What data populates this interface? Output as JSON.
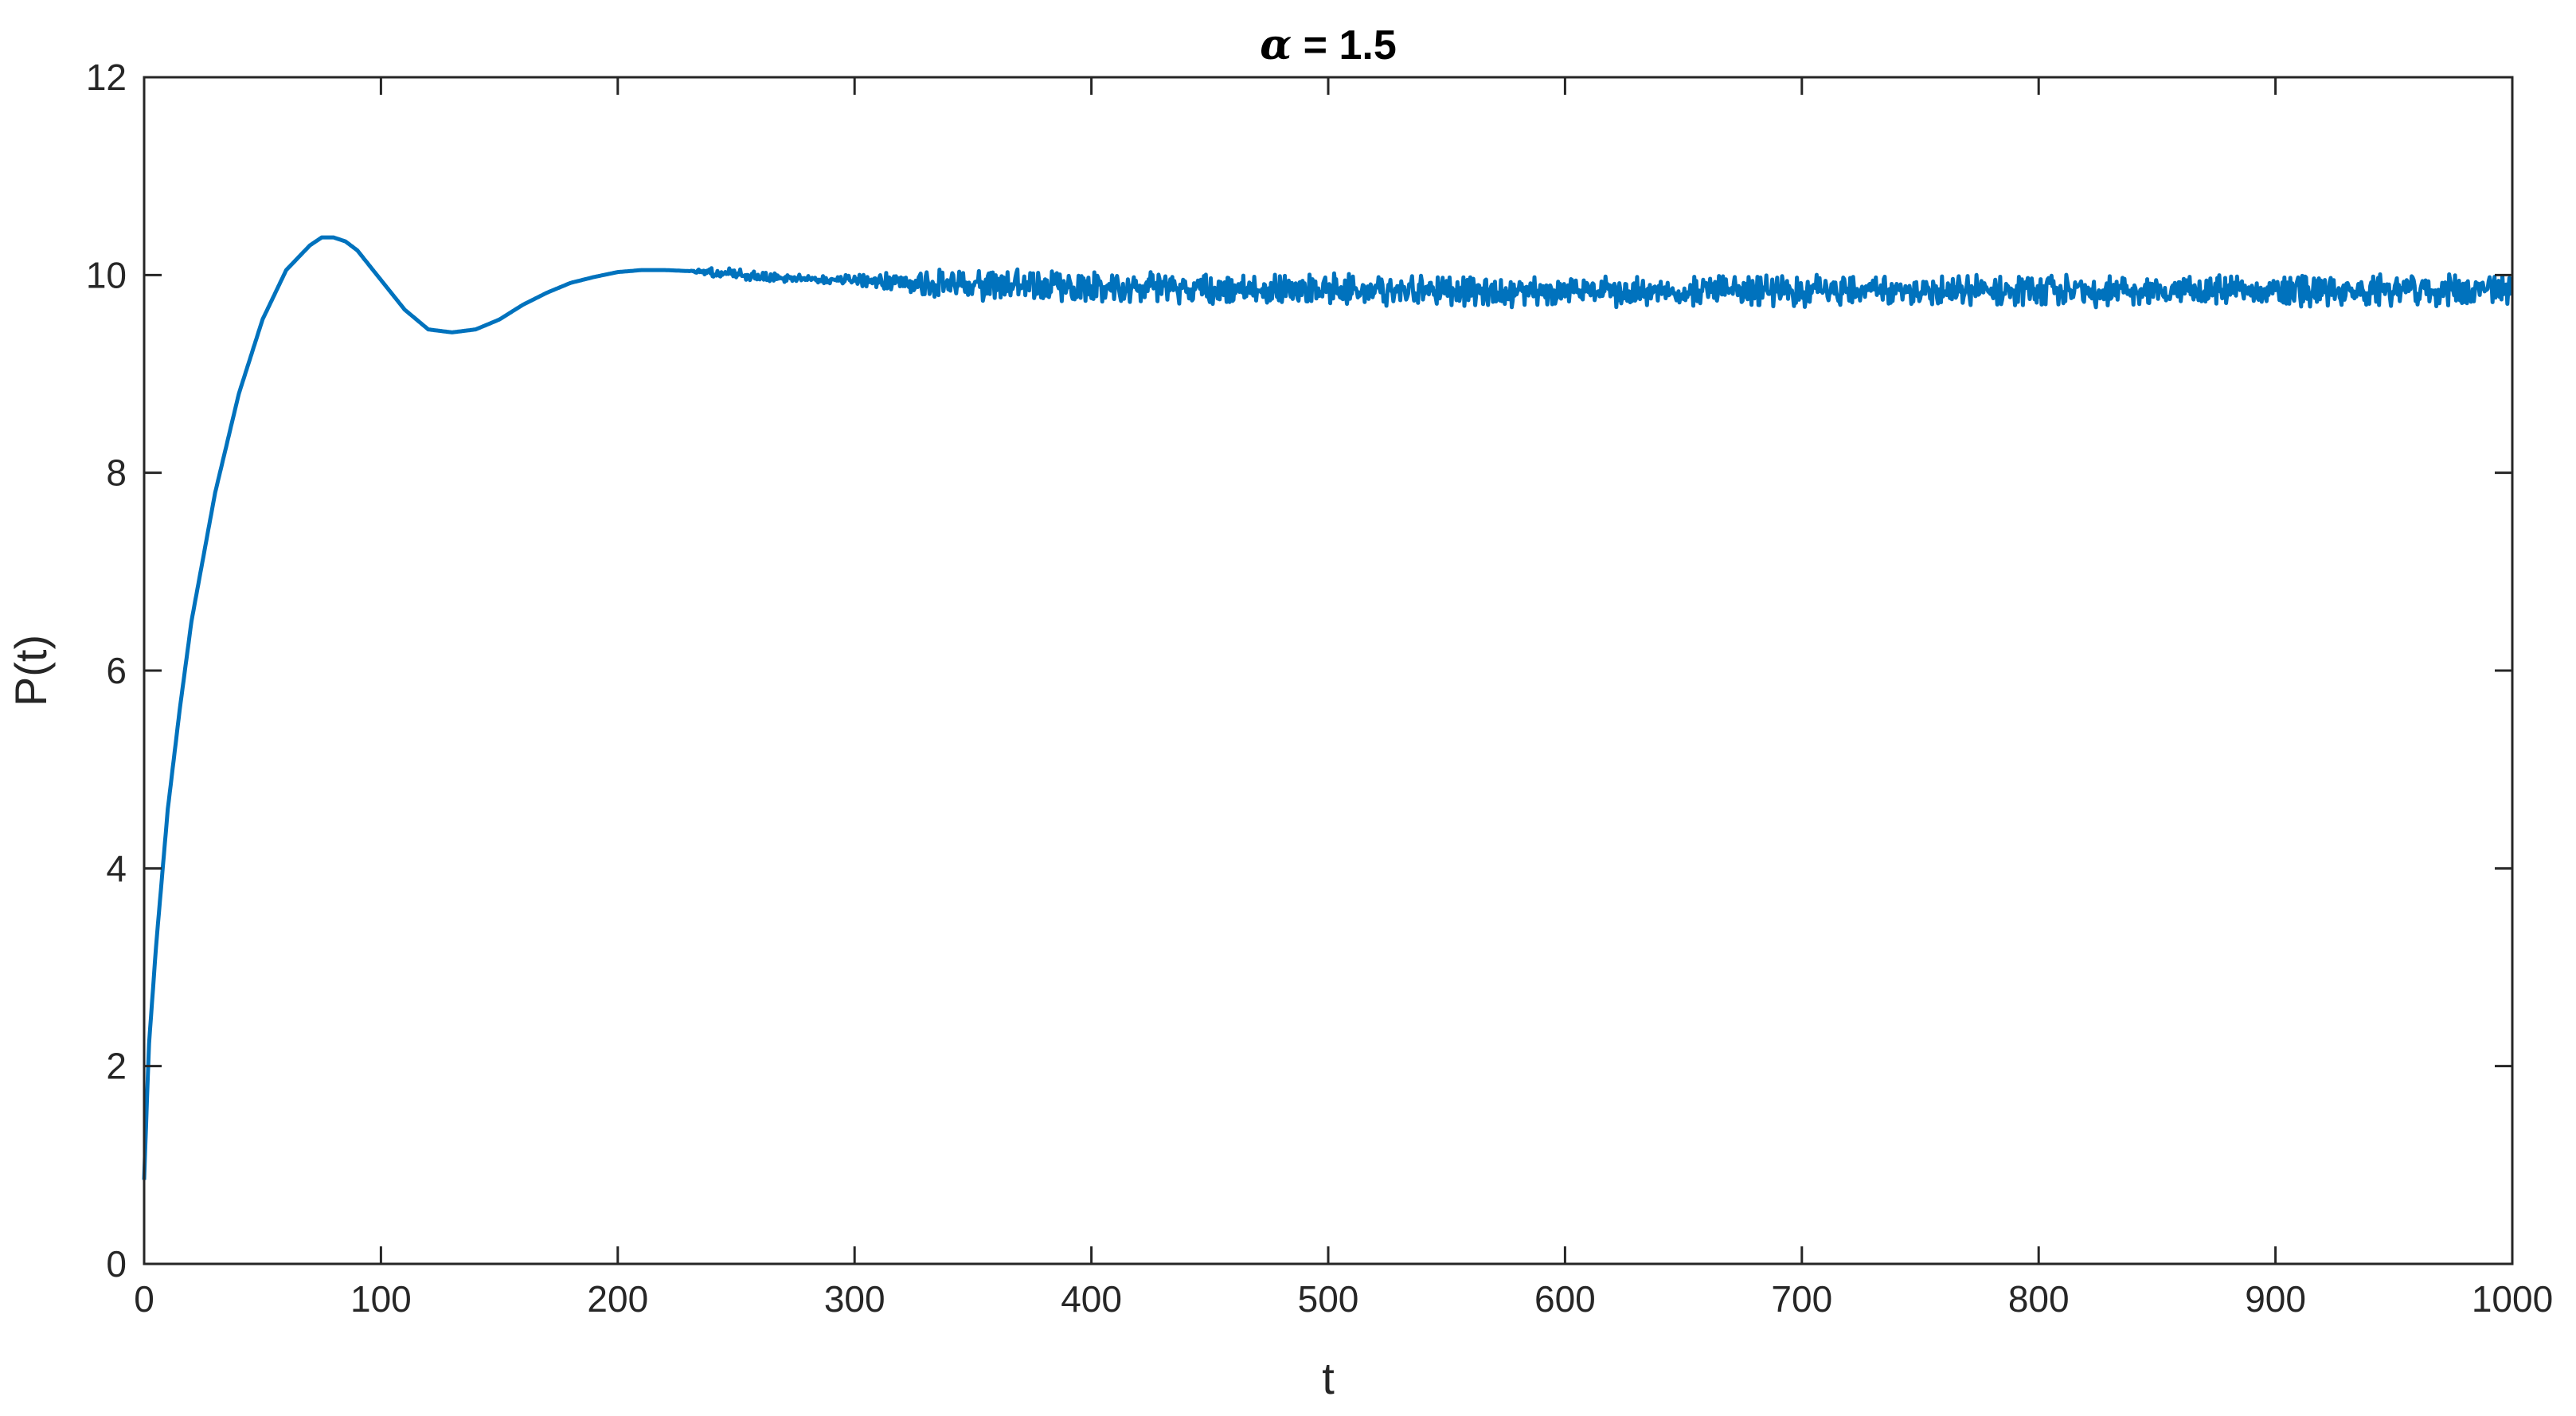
{
  "chart_data": {
    "type": "line",
    "title_symbol": "α",
    "title_rest": " = 1.5",
    "xlabel": "t",
    "ylabel": "P(t)",
    "xlim": [
      0,
      1000
    ],
    "ylim": [
      0,
      12
    ],
    "xticks": [
      0,
      100,
      200,
      300,
      400,
      500,
      600,
      700,
      800,
      900,
      1000
    ],
    "yticks": [
      0,
      2,
      4,
      6,
      8,
      10,
      12
    ],
    "grid": false,
    "line_color": "#0072BD",
    "axis_color": "#262626",
    "series": [
      {
        "x": [
          0,
          2,
          5,
          10,
          15,
          20,
          30,
          40,
          50,
          60,
          70,
          75,
          80,
          85,
          90,
          100,
          110,
          120,
          130,
          140,
          150,
          160,
          170,
          180,
          190,
          200,
          210,
          220,
          230,
          240,
          250,
          260,
          270,
          280,
          290,
          300,
          310,
          320,
          330,
          340,
          350,
          360,
          370,
          380,
          390,
          400,
          410,
          420,
          430,
          440,
          450,
          460,
          470,
          480,
          490,
          500,
          510,
          520,
          530,
          540,
          550,
          560,
          570,
          580,
          590,
          600,
          610,
          620,
          630,
          640,
          650,
          660,
          670,
          680,
          690,
          700,
          710,
          720,
          730,
          740,
          750,
          760,
          770,
          780,
          790,
          800,
          810,
          820,
          830,
          840,
          850,
          860,
          870,
          880,
          890,
          900,
          910,
          920,
          930,
          940,
          950,
          960,
          970,
          980,
          990,
          1000
        ],
        "y": [
          0.85,
          2.2,
          3.2,
          4.6,
          5.6,
          6.5,
          7.8,
          8.8,
          9.55,
          10.05,
          10.3,
          10.38,
          10.38,
          10.34,
          10.25,
          9.95,
          9.65,
          9.45,
          9.42,
          9.45,
          9.55,
          9.7,
          9.82,
          9.92,
          9.98,
          10.03,
          10.05,
          10.05,
          10.04,
          10.03,
          10.0,
          9.98,
          9.97,
          9.96,
          9.95,
          9.95,
          9.94,
          9.93,
          9.92,
          9.91,
          9.91,
          9.9,
          9.9,
          9.89,
          9.88,
          9.88,
          9.87,
          9.87,
          9.87,
          9.86,
          9.86,
          9.86,
          9.86,
          9.85,
          9.85,
          9.85,
          9.85,
          9.85,
          9.84,
          9.84,
          9.84,
          9.84,
          9.84,
          9.84,
          9.84,
          9.84,
          9.84,
          9.84,
          9.84,
          9.84,
          9.84,
          9.84,
          9.84,
          9.84,
          9.84,
          9.84,
          9.84,
          9.84,
          9.84,
          9.84,
          9.84,
          9.84,
          9.84,
          9.84,
          9.84,
          9.84,
          9.84,
          9.84,
          9.84,
          9.84,
          9.84,
          9.84,
          9.84,
          9.84,
          9.84,
          9.84,
          9.84,
          9.84,
          9.84,
          9.84,
          9.84,
          9.84,
          9.84,
          9.84,
          9.84,
          9.84
        ],
        "noise_amplitude": [
          0,
          0,
          0,
          0,
          0,
          0,
          0,
          0,
          0,
          0,
          0,
          0,
          0,
          0,
          0,
          0,
          0,
          0,
          0,
          0,
          0,
          0,
          0,
          0,
          0,
          0,
          0,
          0,
          0,
          0.04,
          0.05,
          0.04,
          0.04,
          0.03,
          0.03,
          0.04,
          0.06,
          0.08,
          0.1,
          0.11,
          0.12,
          0.12,
          0.12,
          0.12,
          0.12,
          0.12,
          0.12,
          0.12,
          0.12,
          0.12,
          0.12,
          0.12,
          0.12,
          0.12,
          0.12,
          0.12,
          0.12,
          0.12,
          0.12,
          0.12,
          0.12,
          0.12,
          0.12,
          0.12,
          0.12,
          0.12,
          0.12,
          0.12,
          0.12,
          0.12,
          0.12,
          0.12,
          0.12,
          0.12,
          0.12,
          0.12,
          0.12,
          0.12,
          0.12,
          0.12,
          0.12,
          0.12,
          0.12,
          0.12,
          0.12,
          0.12,
          0.12,
          0.12,
          0.12,
          0.12,
          0.12,
          0.12,
          0.12,
          0.12,
          0.12,
          0.12,
          0.12,
          0.12,
          0.12,
          0.12,
          0.12,
          0.12,
          0.12,
          0.12,
          0.12,
          0.12
        ]
      }
    ]
  }
}
